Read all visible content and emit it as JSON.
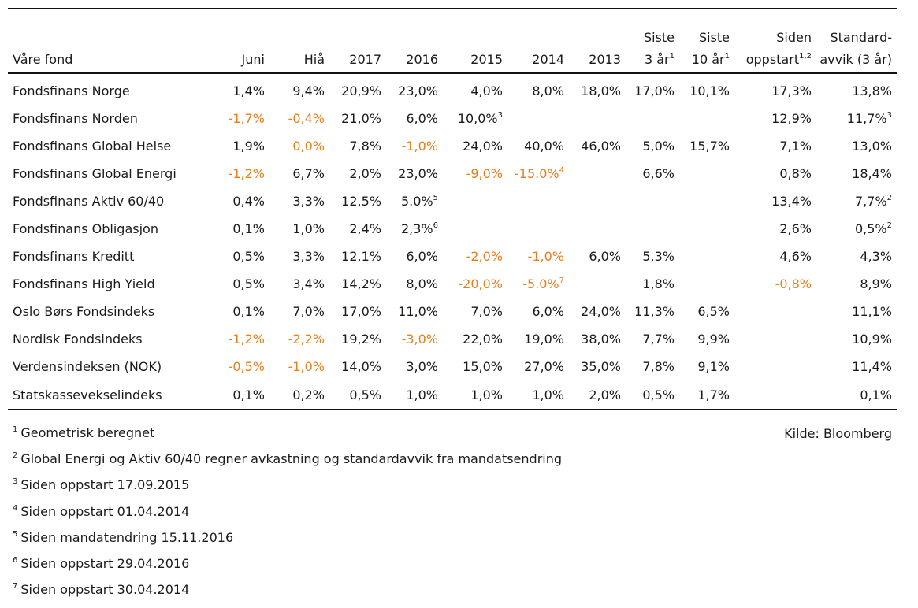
{
  "headers": [
    {
      "label": "Våre fond",
      "sup": ""
    },
    {
      "label": "Juni",
      "sup": ""
    },
    {
      "label": "Hiå",
      "sup": ""
    },
    {
      "label": "2017",
      "sup": ""
    },
    {
      "label": "2016",
      "sup": ""
    },
    {
      "label": "2015",
      "sup": ""
    },
    {
      "label": "2014",
      "sup": ""
    },
    {
      "label": "2013",
      "sup": ""
    },
    {
      "label": "Siste",
      "label2": "3 år",
      "sup": "1"
    },
    {
      "label": "Siste",
      "label2": "10 år",
      "sup": "1"
    },
    {
      "label": "Siden",
      "label2": "oppstart",
      "sup": "1,2"
    },
    {
      "label": "Standard-",
      "label2": "avvik (3 år)",
      "sup": ""
    }
  ],
  "rows": [
    {
      "name": "Fondsfinans Norge",
      "cells": [
        {
          "v": "1,4%"
        },
        {
          "v": "9,4%"
        },
        {
          "v": "20,9%"
        },
        {
          "v": "23,0%"
        },
        {
          "v": "4,0%"
        },
        {
          "v": "8,0%"
        },
        {
          "v": "18,0%"
        },
        {
          "v": "17,0%"
        },
        {
          "v": "10,1%"
        },
        {
          "v": "17,3%"
        },
        {
          "v": "13,8%"
        }
      ]
    },
    {
      "name": "Fondsfinans Norden",
      "cells": [
        {
          "v": "-1,7%",
          "neg": true
        },
        {
          "v": "-0,4%",
          "neg": true
        },
        {
          "v": "21,0%"
        },
        {
          "v": "6,0%"
        },
        {
          "v": "10,0%",
          "sup": "3"
        },
        {
          "v": ""
        },
        {
          "v": ""
        },
        {
          "v": ""
        },
        {
          "v": ""
        },
        {
          "v": "12,9%"
        },
        {
          "v": "11,7%",
          "sup": "3"
        }
      ]
    },
    {
      "name": "Fondsfinans Global Helse",
      "cells": [
        {
          "v": "1,9%"
        },
        {
          "v": "0,0%",
          "neg": true
        },
        {
          "v": "7,8%"
        },
        {
          "v": "-1,0%",
          "neg": true
        },
        {
          "v": "24,0%"
        },
        {
          "v": "40,0%"
        },
        {
          "v": "46,0%"
        },
        {
          "v": "5,0%"
        },
        {
          "v": "15,7%"
        },
        {
          "v": "7,1%"
        },
        {
          "v": "13,0%"
        }
      ]
    },
    {
      "name": "Fondsfinans Global Energi",
      "cells": [
        {
          "v": "-1,2%",
          "neg": true
        },
        {
          "v": "6,7%"
        },
        {
          "v": "2,0%"
        },
        {
          "v": "23,0%"
        },
        {
          "v": "-9,0%",
          "neg": true
        },
        {
          "v": "-15.0%",
          "neg": true,
          "sup": "4"
        },
        {
          "v": ""
        },
        {
          "v": "6,6%"
        },
        {
          "v": ""
        },
        {
          "v": "0,8%"
        },
        {
          "v": "18,4%"
        }
      ]
    },
    {
      "name": "Fondsfinans Aktiv 60/40",
      "cells": [
        {
          "v": "0,4%"
        },
        {
          "v": "3,3%"
        },
        {
          "v": "12,5%"
        },
        {
          "v": "5.0%",
          "sup": "5"
        },
        {
          "v": ""
        },
        {
          "v": ""
        },
        {
          "v": ""
        },
        {
          "v": ""
        },
        {
          "v": ""
        },
        {
          "v": "13,4%"
        },
        {
          "v": "7,7%",
          "sup": "2"
        }
      ]
    },
    {
      "name": "Fondsfinans Obligasjon",
      "cells": [
        {
          "v": "0,1%"
        },
        {
          "v": "1,0%"
        },
        {
          "v": "2,4%"
        },
        {
          "v": "2,3%",
          "sup": "6"
        },
        {
          "v": ""
        },
        {
          "v": ""
        },
        {
          "v": ""
        },
        {
          "v": ""
        },
        {
          "v": ""
        },
        {
          "v": "2,6%"
        },
        {
          "v": "0,5%",
          "sup": "2"
        }
      ]
    },
    {
      "name": "Fondsfinans Kreditt",
      "cells": [
        {
          "v": "0,5%"
        },
        {
          "v": "3,3%"
        },
        {
          "v": "12,1%"
        },
        {
          "v": "6,0%"
        },
        {
          "v": "-2,0%",
          "neg": true
        },
        {
          "v": "-1,0%",
          "neg": true
        },
        {
          "v": "6,0%"
        },
        {
          "v": "5,3%"
        },
        {
          "v": ""
        },
        {
          "v": "4,6%"
        },
        {
          "v": "4,3%"
        }
      ]
    },
    {
      "name": "Fondsfinans High Yield",
      "cells": [
        {
          "v": "0,5%"
        },
        {
          "v": "3,4%"
        },
        {
          "v": "14,2%"
        },
        {
          "v": "8,0%"
        },
        {
          "v": "-20,0%",
          "neg": true
        },
        {
          "v": "-5.0%",
          "neg": true,
          "sup": "7"
        },
        {
          "v": ""
        },
        {
          "v": "1,8%"
        },
        {
          "v": ""
        },
        {
          "v": "-0,8%",
          "neg": true
        },
        {
          "v": "8,9%"
        }
      ]
    },
    {
      "name": "Oslo Børs Fondsindeks",
      "cells": [
        {
          "v": "0,1%"
        },
        {
          "v": "7,0%"
        },
        {
          "v": "17,0%"
        },
        {
          "v": "11,0%"
        },
        {
          "v": "7,0%"
        },
        {
          "v": "6,0%"
        },
        {
          "v": "24,0%"
        },
        {
          "v": "11,3%"
        },
        {
          "v": "6,5%"
        },
        {
          "v": ""
        },
        {
          "v": "11,1%"
        }
      ]
    },
    {
      "name": "Nordisk Fondsindeks",
      "cells": [
        {
          "v": "-1,2%",
          "neg": true
        },
        {
          "v": "-2,2%",
          "neg": true
        },
        {
          "v": "19,2%"
        },
        {
          "v": "-3,0%",
          "neg": true
        },
        {
          "v": "22,0%"
        },
        {
          "v": "19,0%"
        },
        {
          "v": "38,0%"
        },
        {
          "v": "7,7%"
        },
        {
          "v": "9,9%"
        },
        {
          "v": ""
        },
        {
          "v": "10,9%"
        }
      ]
    },
    {
      "name": "Verdensindeksen (NOK)",
      "cells": [
        {
          "v": "-0,5%",
          "neg": true
        },
        {
          "v": "-1,0%",
          "neg": true
        },
        {
          "v": "14,0%"
        },
        {
          "v": "3,0%"
        },
        {
          "v": "15,0%"
        },
        {
          "v": "27,0%"
        },
        {
          "v": "35,0%"
        },
        {
          "v": "7,8%"
        },
        {
          "v": "9,1%"
        },
        {
          "v": ""
        },
        {
          "v": "11,4%"
        }
      ]
    },
    {
      "name": "Statskassevekselindeks",
      "cells": [
        {
          "v": "0,1%"
        },
        {
          "v": "0,2%"
        },
        {
          "v": "0,5%"
        },
        {
          "v": "1,0%"
        },
        {
          "v": "1,0%"
        },
        {
          "v": "1,0%"
        },
        {
          "v": "2,0%"
        },
        {
          "v": "0,5%"
        },
        {
          "v": "1,7%"
        },
        {
          "v": ""
        },
        {
          "v": "0,1%"
        }
      ]
    }
  ],
  "footnotes": [
    {
      "num": "1",
      "text": "Geometrisk beregnet"
    },
    {
      "num": "2",
      "text": "Global Energi og Aktiv 60/40 regner avkastning og standardavvik fra mandatsendring"
    },
    {
      "num": "3",
      "text": "Siden oppstart 17.09.2015"
    },
    {
      "num": "4",
      "text": "Siden oppstart 01.04.2014"
    },
    {
      "num": "5",
      "text": "Siden mandatendring 15.11.2016"
    },
    {
      "num": "6",
      "text": "Siden oppstart 29.04.2016"
    },
    {
      "num": "7",
      "text": "Siden oppstart 30.04.2014"
    }
  ],
  "source": "Kilde: Bloomberg",
  "colors": {
    "negative": "#e87e1c",
    "text": "#1a1a1a",
    "rule": "#111111"
  }
}
